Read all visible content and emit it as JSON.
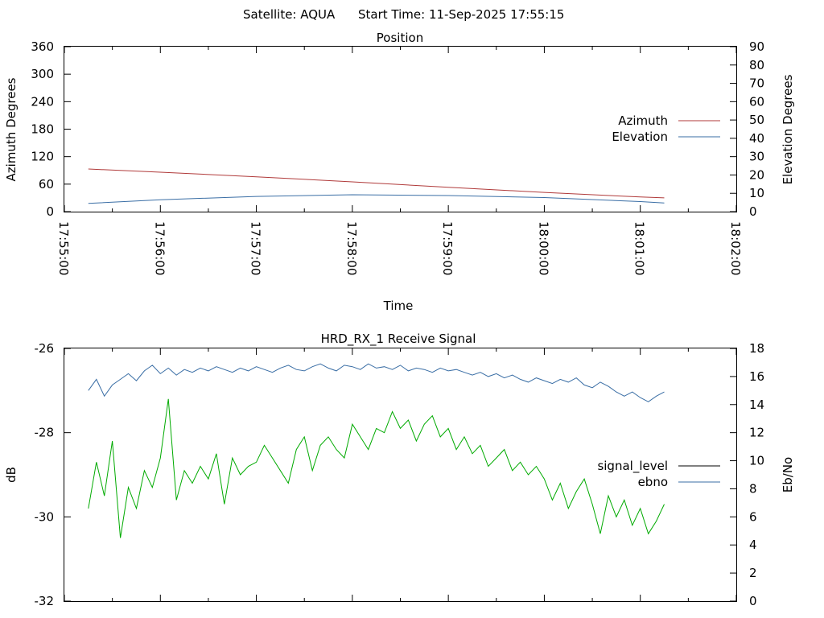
{
  "header": {
    "satellite_text": "Satellite: AQUA",
    "start_time_text": "Start Time: 11-Sep-2025 17:55:15"
  },
  "chart_data": [
    {
      "type": "line",
      "title": "Position",
      "xlabel": "Time",
      "ylabel": "Azimuth Degrees",
      "y2label": "Elevation Degrees",
      "ylim": [
        0,
        360
      ],
      "y2lim": [
        0,
        90
      ],
      "yticks": [
        0,
        60,
        120,
        180,
        240,
        300,
        360
      ],
      "y2ticks": [
        0,
        10,
        20,
        30,
        40,
        50,
        60,
        70,
        80,
        90
      ],
      "x_tick_labels": [
        "17:55:00",
        "17:56:00",
        "17:57:00",
        "17:58:00",
        "17:59:00",
        "18:00:00",
        "18:01:00",
        "18:02:00"
      ],
      "xlim": [
        "17:55:00",
        "18:02:00"
      ],
      "legend_position": "right",
      "series": [
        {
          "name": "Azimuth",
          "axis": "left",
          "color": "#b03a3a",
          "points": [
            [
              "17:55:15",
              93
            ],
            [
              "17:56:00",
              86
            ],
            [
              "17:57:00",
              76
            ],
            [
              "17:58:00",
              65
            ],
            [
              "17:59:00",
              53
            ],
            [
              "18:00:00",
              42
            ],
            [
              "18:01:00",
              32
            ],
            [
              "18:01:15",
              30
            ]
          ]
        },
        {
          "name": "Elevation",
          "axis": "right",
          "color": "#3a6ea5",
          "points": [
            [
              "17:55:15",
              4.5
            ],
            [
              "17:56:00",
              6.5
            ],
            [
              "17:57:00",
              8.3
            ],
            [
              "17:58:00",
              9.2
            ],
            [
              "17:59:00",
              8.8
            ],
            [
              "18:00:00",
              7.7
            ],
            [
              "18:01:00",
              5.5
            ],
            [
              "18:01:15",
              4.7
            ]
          ]
        }
      ]
    },
    {
      "type": "line",
      "title": "HRD_RX_1 Receive Signal",
      "xlabel": "",
      "ylabel": "dB",
      "y2label": "Eb/No",
      "ylim": [
        -32,
        -26
      ],
      "y2lim": [
        0,
        18
      ],
      "yticks": [
        -32,
        -30,
        -28,
        -26
      ],
      "y2ticks": [
        0,
        2,
        4,
        6,
        8,
        10,
        12,
        14,
        16,
        18
      ],
      "xlim": [
        "17:55:00",
        "18:02:00"
      ],
      "legend_position": "right",
      "series": [
        {
          "name": "signal_level",
          "axis": "left",
          "color": "#00aa00",
          "points": [
            [
              "17:55:15",
              -29.8
            ],
            [
              "17:55:20",
              -28.7
            ],
            [
              "17:55:25",
              -29.5
            ],
            [
              "17:55:30",
              -28.2
            ],
            [
              "17:55:35",
              -30.5
            ],
            [
              "17:55:40",
              -29.3
            ],
            [
              "17:55:45",
              -29.8
            ],
            [
              "17:55:50",
              -28.9
            ],
            [
              "17:55:55",
              -29.3
            ],
            [
              "17:56:00",
              -28.6
            ],
            [
              "17:56:05",
              -27.2
            ],
            [
              "17:56:10",
              -29.6
            ],
            [
              "17:56:15",
              -28.9
            ],
            [
              "17:56:20",
              -29.2
            ],
            [
              "17:56:25",
              -28.8
            ],
            [
              "17:56:30",
              -29.1
            ],
            [
              "17:56:35",
              -28.5
            ],
            [
              "17:56:40",
              -29.7
            ],
            [
              "17:56:45",
              -28.6
            ],
            [
              "17:56:50",
              -29.0
            ],
            [
              "17:56:55",
              -28.8
            ],
            [
              "17:57:00",
              -28.7
            ],
            [
              "17:57:05",
              -28.3
            ],
            [
              "17:57:10",
              -28.6
            ],
            [
              "17:57:15",
              -28.9
            ],
            [
              "17:57:20",
              -29.2
            ],
            [
              "17:57:25",
              -28.4
            ],
            [
              "17:57:30",
              -28.1
            ],
            [
              "17:57:35",
              -28.9
            ],
            [
              "17:57:40",
              -28.3
            ],
            [
              "17:57:45",
              -28.1
            ],
            [
              "17:57:50",
              -28.4
            ],
            [
              "17:57:55",
              -28.6
            ],
            [
              "17:58:00",
              -27.8
            ],
            [
              "17:58:05",
              -28.1
            ],
            [
              "17:58:10",
              -28.4
            ],
            [
              "17:58:15",
              -27.9
            ],
            [
              "17:58:20",
              -28.0
            ],
            [
              "17:58:25",
              -27.5
            ],
            [
              "17:58:30",
              -27.9
            ],
            [
              "17:58:35",
              -27.7
            ],
            [
              "17:58:40",
              -28.2
            ],
            [
              "17:58:45",
              -27.8
            ],
            [
              "17:58:50",
              -27.6
            ],
            [
              "17:58:55",
              -28.1
            ],
            [
              "17:59:00",
              -27.9
            ],
            [
              "17:59:05",
              -28.4
            ],
            [
              "17:59:10",
              -28.1
            ],
            [
              "17:59:15",
              -28.5
            ],
            [
              "17:59:20",
              -28.3
            ],
            [
              "17:59:25",
              -28.8
            ],
            [
              "17:59:30",
              -28.6
            ],
            [
              "17:59:35",
              -28.4
            ],
            [
              "17:59:40",
              -28.9
            ],
            [
              "17:59:45",
              -28.7
            ],
            [
              "17:59:50",
              -29.0
            ],
            [
              "17:59:55",
              -28.8
            ],
            [
              "18:00:00",
              -29.1
            ],
            [
              "18:00:05",
              -29.6
            ],
            [
              "18:00:10",
              -29.2
            ],
            [
              "18:00:15",
              -29.8
            ],
            [
              "18:00:20",
              -29.4
            ],
            [
              "18:00:25",
              -29.1
            ],
            [
              "18:00:30",
              -29.7
            ],
            [
              "18:00:35",
              -30.4
            ],
            [
              "18:00:40",
              -29.5
            ],
            [
              "18:00:45",
              -30.0
            ],
            [
              "18:00:50",
              -29.6
            ],
            [
              "18:00:55",
              -30.2
            ],
            [
              "18:01:00",
              -29.8
            ],
            [
              "18:01:05",
              -30.4
            ],
            [
              "18:01:10",
              -30.1
            ],
            [
              "18:01:15",
              -29.7
            ]
          ]
        },
        {
          "name": "ebno",
          "axis": "right",
          "color": "#3a6ea5",
          "points": [
            [
              "17:55:15",
              15.0
            ],
            [
              "17:55:20",
              15.8
            ],
            [
              "17:55:25",
              14.6
            ],
            [
              "17:55:30",
              15.4
            ],
            [
              "17:55:35",
              15.8
            ],
            [
              "17:55:40",
              16.2
            ],
            [
              "17:55:45",
              15.7
            ],
            [
              "17:55:50",
              16.4
            ],
            [
              "17:55:55",
              16.8
            ],
            [
              "17:56:00",
              16.2
            ],
            [
              "17:56:05",
              16.6
            ],
            [
              "17:56:10",
              16.1
            ],
            [
              "17:56:15",
              16.5
            ],
            [
              "17:56:20",
              16.3
            ],
            [
              "17:56:25",
              16.6
            ],
            [
              "17:56:30",
              16.4
            ],
            [
              "17:56:35",
              16.7
            ],
            [
              "17:56:40",
              16.5
            ],
            [
              "17:56:45",
              16.3
            ],
            [
              "17:56:50",
              16.6
            ],
            [
              "17:56:55",
              16.4
            ],
            [
              "17:57:00",
              16.7
            ],
            [
              "17:57:05",
              16.5
            ],
            [
              "17:57:10",
              16.3
            ],
            [
              "17:57:15",
              16.6
            ],
            [
              "17:57:20",
              16.8
            ],
            [
              "17:57:25",
              16.5
            ],
            [
              "17:57:30",
              16.4
            ],
            [
              "17:57:35",
              16.7
            ],
            [
              "17:57:40",
              16.9
            ],
            [
              "17:57:45",
              16.6
            ],
            [
              "17:57:50",
              16.4
            ],
            [
              "17:57:55",
              16.8
            ],
            [
              "17:58:00",
              16.7
            ],
            [
              "17:58:05",
              16.5
            ],
            [
              "17:58:10",
              16.9
            ],
            [
              "17:58:15",
              16.6
            ],
            [
              "17:58:20",
              16.7
            ],
            [
              "17:58:25",
              16.5
            ],
            [
              "17:58:30",
              16.8
            ],
            [
              "17:58:35",
              16.4
            ],
            [
              "17:58:40",
              16.6
            ],
            [
              "17:58:45",
              16.5
            ],
            [
              "17:58:50",
              16.3
            ],
            [
              "17:58:55",
              16.6
            ],
            [
              "17:59:00",
              16.4
            ],
            [
              "17:59:05",
              16.5
            ],
            [
              "17:59:10",
              16.3
            ],
            [
              "17:59:15",
              16.1
            ],
            [
              "17:59:20",
              16.3
            ],
            [
              "17:59:25",
              16.0
            ],
            [
              "17:59:30",
              16.2
            ],
            [
              "17:59:35",
              15.9
            ],
            [
              "17:59:40",
              16.1
            ],
            [
              "17:59:45",
              15.8
            ],
            [
              "17:59:50",
              15.6
            ],
            [
              "17:59:55",
              15.9
            ],
            [
              "18:00:00",
              15.7
            ],
            [
              "18:00:05",
              15.5
            ],
            [
              "18:00:10",
              15.8
            ],
            [
              "18:00:15",
              15.6
            ],
            [
              "18:00:20",
              15.9
            ],
            [
              "18:00:25",
              15.4
            ],
            [
              "18:00:30",
              15.2
            ],
            [
              "18:00:35",
              15.6
            ],
            [
              "18:00:40",
              15.3
            ],
            [
              "18:00:45",
              14.9
            ],
            [
              "18:00:50",
              14.6
            ],
            [
              "18:00:55",
              14.9
            ],
            [
              "18:01:00",
              14.5
            ],
            [
              "18:01:05",
              14.2
            ],
            [
              "18:01:10",
              14.6
            ],
            [
              "18:01:15",
              14.9
            ]
          ]
        }
      ]
    }
  ]
}
